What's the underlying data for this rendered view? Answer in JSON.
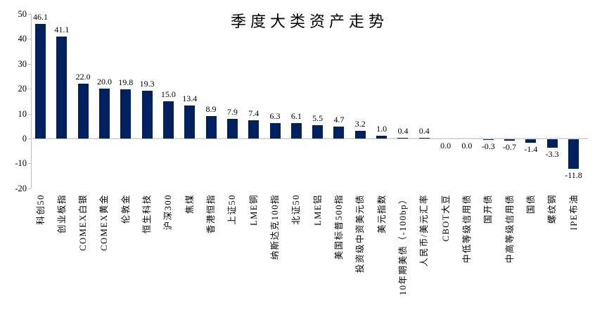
{
  "chart_data": {
    "type": "bar",
    "title": "季度大类资产走势",
    "categories": [
      "科创50",
      "创业板指",
      "COMEX白银",
      "COMEX黄金",
      "伦敦金",
      "恒生科技",
      "沪深300",
      "焦煤",
      "香港恒指",
      "上证50",
      "LME铜",
      "纳斯达克100指",
      "北证50",
      "LME铝",
      "美国标普500指",
      "投资级中资美元债",
      "美元指数",
      "10年期美债（-100bp）",
      "人民币/美元汇率",
      "CBOT大豆",
      "中低等级信用债",
      "国开债",
      "中高等级信用债",
      "国债",
      "螺纹钢",
      "IPE布油"
    ],
    "values": [
      46.1,
      41.1,
      22.0,
      20.0,
      19.8,
      19.3,
      15.0,
      13.4,
      8.9,
      7.9,
      7.4,
      6.3,
      6.1,
      5.5,
      4.7,
      3.2,
      1.0,
      0.4,
      0.4,
      0.0,
      0.0,
      -0.3,
      -0.7,
      -1.4,
      -3.3,
      -11.8
    ],
    "value_label_decimals": 1,
    "xlabel": "",
    "ylabel": "",
    "ylim": [
      -20,
      50
    ],
    "yticks": [
      50,
      40,
      30,
      20,
      10,
      0,
      -10,
      -20
    ],
    "grid": false,
    "legend_position": "none",
    "colors": {
      "bar": "#002060",
      "zero_line": "#D9D9D9",
      "axis": "#BFBFBF",
      "text": "#000000"
    }
  }
}
